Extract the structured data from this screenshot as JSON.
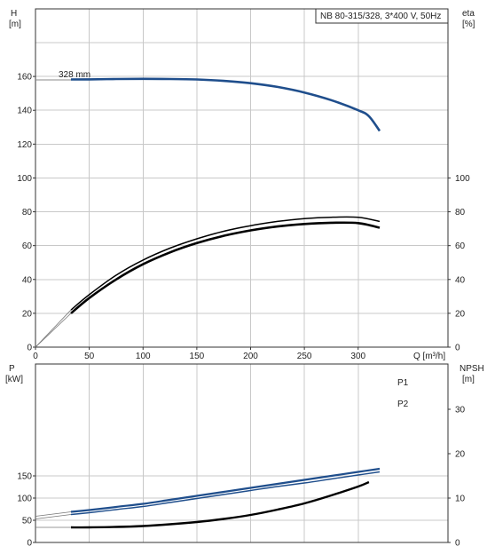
{
  "chart_data": [
    {
      "type": "line",
      "title": "NB 80-315/328, 3*400 V, 50Hz",
      "xlabel": "Q [m³/h]",
      "ylabel_left": "H\n[m]",
      "ylabel_right": "eta\n[%]",
      "xlim": [
        0,
        320
      ],
      "ylim_left": [
        0,
        180
      ],
      "ylim_right": [
        0,
        180
      ],
      "x_ticks": [
        0,
        50,
        100,
        150,
        200,
        250,
        300
      ],
      "y_ticks_left": [
        0,
        20,
        40,
        60,
        80,
        100,
        120,
        140,
        160
      ],
      "y_ticks_right": [
        0,
        20,
        40,
        60,
        80,
        100
      ],
      "grid": true,
      "annotation": "328 mm",
      "series": [
        {
          "name": "328 mm",
          "axis": "left",
          "color": "#1f4e8c",
          "x": [
            33,
            50,
            75,
            100,
            125,
            150,
            175,
            200,
            225,
            250,
            275,
            300,
            310,
            320
          ],
          "y": [
            158.2,
            158.3,
            158.5,
            158.6,
            158.5,
            158.2,
            157.4,
            156.0,
            153.8,
            150.5,
            146.0,
            140.0,
            136.5,
            127.8
          ]
        },
        {
          "axis": "right",
          "color": "#000000",
          "x": [
            33,
            50,
            75,
            100,
            125,
            150,
            175,
            200,
            225,
            250,
            275,
            300,
            320
          ],
          "y": [
            22.0,
            31.0,
            42.5,
            51.5,
            58.5,
            64.0,
            68.5,
            71.8,
            74.3,
            76.0,
            76.8,
            76.7,
            74.3
          ]
        },
        {
          "axis": "right",
          "color": "#000000",
          "x": [
            33,
            50,
            75,
            100,
            125,
            150,
            175,
            200,
            225,
            250,
            275,
            300,
            320
          ],
          "y": [
            20.0,
            29.0,
            40.0,
            49.0,
            56.0,
            61.5,
            65.8,
            69.0,
            71.3,
            72.8,
            73.5,
            73.3,
            70.6
          ]
        }
      ]
    },
    {
      "type": "line",
      "xlabel": "",
      "ylabel_left": "P\n[kW]",
      "ylabel_right": "NPSH\n[m]",
      "xlim": [
        0,
        320
      ],
      "ylim_left": [
        0,
        180
      ],
      "ylim_right": [
        0,
        36
      ],
      "y_ticks_left": [
        0,
        50,
        100,
        150
      ],
      "y_ticks_right": [
        0,
        10,
        20,
        30
      ],
      "grid": true,
      "series": [
        {
          "name": "P1",
          "axis": "left",
          "color": "#1f4e8c",
          "x": [
            33,
            50,
            75,
            100,
            125,
            150,
            175,
            200,
            225,
            250,
            275,
            300,
            320
          ],
          "y": [
            69,
            73,
            80,
            87,
            96,
            105,
            114,
            123,
            132,
            141,
            150,
            159,
            166
          ]
        },
        {
          "name": "P2",
          "axis": "left",
          "color": "#1f4e8c",
          "x": [
            33,
            50,
            75,
            100,
            125,
            150,
            175,
            200,
            225,
            250,
            275,
            300,
            320
          ],
          "y": [
            63,
            67,
            74,
            81,
            90,
            99,
            108,
            117,
            126,
            134,
            143,
            152,
            159
          ]
        },
        {
          "axis": "right",
          "color": "#000000",
          "x": [
            33,
            50,
            75,
            100,
            125,
            150,
            175,
            200,
            225,
            250,
            275,
            300,
            310
          ],
          "y": [
            3.4,
            3.4,
            3.5,
            3.7,
            4.1,
            4.6,
            5.3,
            6.2,
            7.4,
            8.8,
            10.6,
            12.6,
            13.6
          ]
        }
      ]
    }
  ]
}
